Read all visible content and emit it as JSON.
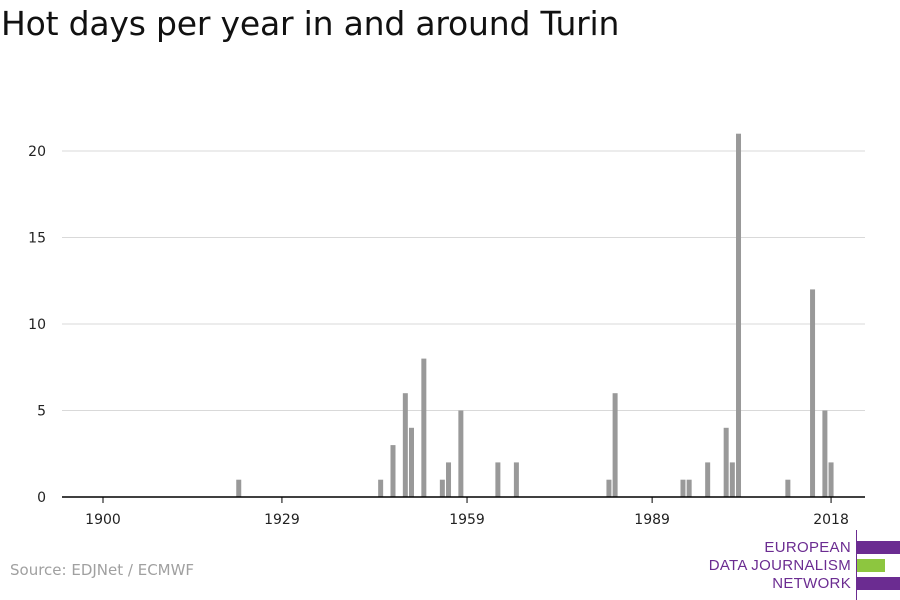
{
  "chart_data": {
    "type": "bar",
    "title": "Hot days per year in and around Turin",
    "xlabel": "",
    "ylabel": "",
    "x_ticks": [
      1900,
      1929,
      1959,
      1989,
      2018
    ],
    "y_ticks": [
      0,
      5,
      10,
      15,
      20
    ],
    "xlim": [
      1900,
      2020
    ],
    "ylim": [
      0,
      21
    ],
    "grid": "horizontal",
    "bar_color": "#999999",
    "bars": [
      {
        "year": 1922,
        "value": 1
      },
      {
        "year": 1945,
        "value": 1
      },
      {
        "year": 1947,
        "value": 3
      },
      {
        "year": 1949,
        "value": 6
      },
      {
        "year": 1950,
        "value": 4
      },
      {
        "year": 1952,
        "value": 8
      },
      {
        "year": 1955,
        "value": 1
      },
      {
        "year": 1956,
        "value": 2
      },
      {
        "year": 1958,
        "value": 5
      },
      {
        "year": 1964,
        "value": 2
      },
      {
        "year": 1967,
        "value": 2
      },
      {
        "year": 1982,
        "value": 1
      },
      {
        "year": 1983,
        "value": 6
      },
      {
        "year": 1994,
        "value": 1
      },
      {
        "year": 1995,
        "value": 1
      },
      {
        "year": 1998,
        "value": 2
      },
      {
        "year": 2001,
        "value": 4
      },
      {
        "year": 2002,
        "value": 2
      },
      {
        "year": 2003,
        "value": 21
      },
      {
        "year": 2011,
        "value": 1
      },
      {
        "year": 2015,
        "value": 12
      },
      {
        "year": 2017,
        "value": 5
      },
      {
        "year": 2018,
        "value": 2
      }
    ]
  },
  "source": "Source: EDJNet / ECMWF",
  "logo": {
    "lines": [
      "EUROPEAN",
      "DATA JOURNALISM",
      "NETWORK"
    ],
    "colors": {
      "purple": "#6b2c91",
      "green": "#8dc63f"
    }
  }
}
